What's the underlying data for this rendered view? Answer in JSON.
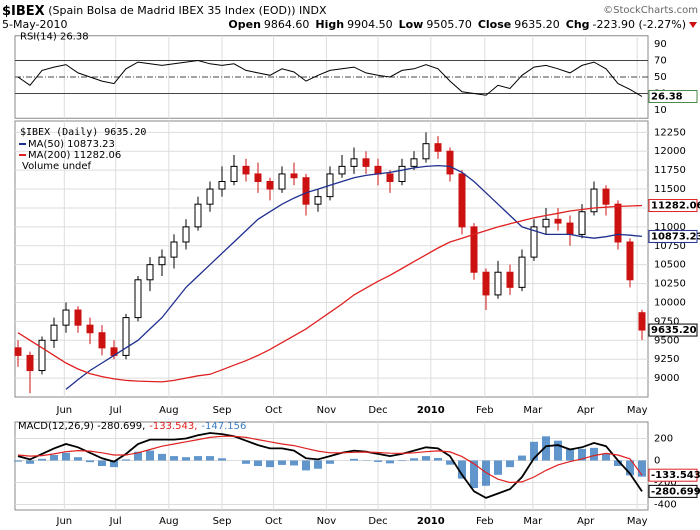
{
  "header": {
    "symbol": "$IBEX",
    "name": "(Spain Bolsa de Madrid IBEX 35 Index (EOD))",
    "exchange": "INDX",
    "date": "5-May-2010",
    "copyright": "©StockCharts.com",
    "stats": [
      {
        "label": "Open",
        "value": "9864.60"
      },
      {
        "label": "High",
        "value": "9904.50"
      },
      {
        "label": "Low",
        "value": "9505.70"
      },
      {
        "label": "Close",
        "value": "9635.20"
      },
      {
        "label": "Chg",
        "value": "-223.90 (-2.27%)"
      }
    ]
  },
  "chart_data": [
    {
      "type": "candlestick",
      "name": "$IBEX (Daily) 9635.20",
      "note": "Volume undef",
      "up_color": "#000000",
      "down_color": "#cc1111",
      "open": [
        9400,
        9300,
        9100,
        9500,
        9700,
        9900,
        9700,
        9600,
        9400,
        9300,
        9800,
        10300,
        10500,
        10600,
        10800,
        11000,
        11300,
        11500,
        11600,
        11800,
        11700,
        11600,
        11500,
        11700,
        11650,
        11300,
        11400,
        11700,
        11800,
        11900,
        11800,
        11700,
        11600,
        11800,
        11900,
        12100,
        12000,
        11700,
        11000,
        10400,
        10100,
        10400,
        10200,
        10600,
        11000,
        11100,
        11050,
        10900,
        11200,
        11500,
        11300,
        10800,
        9864.6
      ],
      "high": [
        9500,
        9350,
        9550,
        9800,
        10000,
        9950,
        9800,
        9700,
        9500,
        9850,
        10350,
        10600,
        10700,
        10900,
        11100,
        11400,
        11600,
        11800,
        11950,
        11900,
        11850,
        11650,
        11800,
        11850,
        11700,
        11500,
        11800,
        11950,
        12050,
        12000,
        11900,
        11750,
        11900,
        12000,
        12250,
        12200,
        12050,
        11750,
        11050,
        10450,
        10550,
        10500,
        10700,
        11100,
        11250,
        11250,
        11150,
        11300,
        11600,
        11550,
        11350,
        10850,
        9904.5
      ],
      "low": [
        9150,
        8800,
        9050,
        9400,
        9600,
        9600,
        9450,
        9300,
        9250,
        9250,
        9750,
        10150,
        10350,
        10450,
        10700,
        10950,
        11200,
        11400,
        11550,
        11600,
        11450,
        11350,
        11450,
        11550,
        11150,
        11200,
        11350,
        11650,
        11700,
        11700,
        11550,
        11450,
        11550,
        11750,
        11850,
        11900,
        11600,
        10900,
        10300,
        9900,
        10050,
        10100,
        10150,
        10550,
        10900,
        10950,
        10750,
        10850,
        11150,
        11150,
        10700,
        10200,
        9505.7
      ],
      "close": [
        9300,
        9100,
        9500,
        9700,
        9900,
        9700,
        9600,
        9400,
        9300,
        9800,
        10300,
        10500,
        10600,
        10800,
        11000,
        11300,
        11500,
        11600,
        11800,
        11700,
        11600,
        11500,
        11700,
        11650,
        11300,
        11400,
        11700,
        11800,
        11900,
        11800,
        11700,
        11600,
        11800,
        11900,
        12100,
        12000,
        11700,
        11000,
        10400,
        10100,
        10400,
        10200,
        10600,
        11000,
        11100,
        11050,
        10900,
        11200,
        11500,
        11300,
        10800,
        10300,
        9635.2
      ],
      "series": [
        {
          "name": "MA(50) 10873.23",
          "color": "#1f2f8f",
          "values": [
            null,
            null,
            null,
            null,
            8850,
            8980,
            9100,
            9200,
            9300,
            9400,
            9500,
            9650,
            9800,
            10000,
            10200,
            10350,
            10500,
            10650,
            10800,
            10950,
            11100,
            11200,
            11300,
            11380,
            11450,
            11500,
            11550,
            11600,
            11650,
            11680,
            11700,
            11720,
            11750,
            11780,
            11800,
            11810,
            11800,
            11720,
            11600,
            11450,
            11300,
            11150,
            11000,
            10950,
            10900,
            10900,
            10900,
            10870,
            10850,
            10870,
            10900,
            10890,
            10873.23
          ]
        },
        {
          "name": "MA(200) 11282.06",
          "color": "#e02020",
          "values": [
            9600,
            9500,
            9400,
            9300,
            9200,
            9120,
            9060,
            9020,
            8990,
            8970,
            8960,
            8955,
            8950,
            8970,
            9000,
            9030,
            9050,
            9110,
            9170,
            9230,
            9300,
            9380,
            9470,
            9560,
            9650,
            9760,
            9870,
            9980,
            10100,
            10190,
            10280,
            10360,
            10450,
            10540,
            10630,
            10720,
            10800,
            10850,
            10900,
            10950,
            11000,
            11040,
            11080,
            11120,
            11150,
            11180,
            11210,
            11230,
            11250,
            11260,
            11270,
            11276,
            11282.06
          ]
        }
      ],
      "xlim": [
        -0.25,
        52.5
      ],
      "xticks": [
        {
          "value": 3.86,
          "label": "Jun"
        },
        {
          "value": 8.14,
          "label": "Jul"
        },
        {
          "value": 12.57,
          "label": "Aug"
        },
        {
          "value": 17,
          "label": "Sep"
        },
        {
          "value": 21.3,
          "label": "Oct"
        },
        {
          "value": 25.7,
          "label": "Nov"
        },
        {
          "value": 30,
          "label": "Dec"
        },
        {
          "value": 34.4,
          "label": "2010"
        },
        {
          "value": 38.9,
          "label": "Feb"
        },
        {
          "value": 42.9,
          "label": "Mar"
        },
        {
          "value": 47.3,
          "label": "Apr"
        },
        {
          "value": 51.6,
          "label": "May"
        }
      ],
      "ylim": [
        8750,
        12400
      ],
      "yticks": [
        9000,
        9250,
        9500,
        9750,
        10000,
        10250,
        10500,
        10750,
        11000,
        11250,
        11500,
        11750,
        12000,
        12250
      ],
      "grid": true,
      "tags": [
        {
          "value": 11282.06,
          "label": "11282.06",
          "color": "#e02020"
        },
        {
          "value": 10873.23,
          "label": "10873.23",
          "color": "#1f2f8f"
        },
        {
          "value": 9635.2,
          "label": "9635.20",
          "color": "#000000"
        }
      ]
    },
    {
      "type": "line",
      "title": "RSI(14) 26.38",
      "color": "#000000",
      "values": [
        50,
        40,
        58,
        62,
        65,
        55,
        50,
        45,
        42,
        60,
        68,
        66,
        64,
        66,
        68,
        70,
        66,
        64,
        66,
        58,
        55,
        52,
        60,
        56,
        45,
        52,
        58,
        60,
        62,
        55,
        52,
        50,
        58,
        60,
        65,
        60,
        45,
        32,
        30,
        28,
        40,
        36,
        52,
        62,
        64,
        60,
        55,
        64,
        68,
        60,
        42,
        35,
        26.38
      ],
      "ylim": [
        0,
        100
      ],
      "yticks": [
        90,
        70,
        50,
        30,
        10
      ],
      "levels": [
        70,
        50,
        30
      ],
      "tags": [
        {
          "value": 26.38,
          "label": "26.38",
          "color": "#4a8a4a"
        }
      ]
    },
    {
      "type": "macd",
      "series": [
        {
          "name": "MACD(12,26,9) -280.699,",
          "color": "#000000",
          "values": [
            40,
            10,
            60,
            110,
            150,
            120,
            70,
            20,
            -10,
            60,
            150,
            190,
            190,
            190,
            200,
            230,
            250,
            240,
            220,
            180,
            140,
            110,
            110,
            90,
            20,
            10,
            40,
            70,
            90,
            80,
            60,
            40,
            60,
            90,
            120,
            110,
            40,
            -130,
            -280,
            -340,
            -300,
            -260,
            -150,
            20,
            130,
            140,
            100,
            120,
            160,
            130,
            0,
            -120,
            -280.699
          ]
        },
        {
          "name": "-133.543,",
          "color": "#e02020",
          "values": [
            50,
            40,
            45,
            60,
            80,
            90,
            85,
            70,
            50,
            50,
            70,
            100,
            130,
            150,
            170,
            190,
            210,
            220,
            220,
            210,
            190,
            170,
            150,
            135,
            110,
            85,
            70,
            70,
            75,
            77,
            73,
            66,
            65,
            70,
            80,
            87,
            78,
            35,
            -30,
            -110,
            -170,
            -200,
            -195,
            -150,
            -90,
            -40,
            -10,
            15,
            45,
            65,
            50,
            15,
            -133.543
          ]
        },
        {
          "name": "-147.156",
          "color": "#3a7cc0",
          "style": "bars",
          "values": [
            -10,
            -30,
            15,
            50,
            70,
            30,
            -15,
            -50,
            -60,
            10,
            80,
            90,
            60,
            40,
            30,
            40,
            40,
            20,
            0,
            -30,
            -50,
            -60,
            -40,
            -45,
            -90,
            -75,
            -30,
            0,
            15,
            3,
            -13,
            -26,
            -5,
            20,
            40,
            23,
            -38,
            -165,
            -250,
            -230,
            -130,
            -60,
            45,
            170,
            220,
            180,
            110,
            105,
            115,
            65,
            -50,
            -135,
            -147.156
          ]
        }
      ],
      "ylim": [
        -450,
        350
      ],
      "yticks": [
        200,
        0,
        -200,
        -400
      ],
      "grid": true,
      "tags": [
        {
          "value": -133.543,
          "label": "-133.543",
          "color": "#e02020"
        },
        {
          "value": -280.699,
          "label": "-280.699",
          "color": "#000000"
        }
      ]
    }
  ]
}
